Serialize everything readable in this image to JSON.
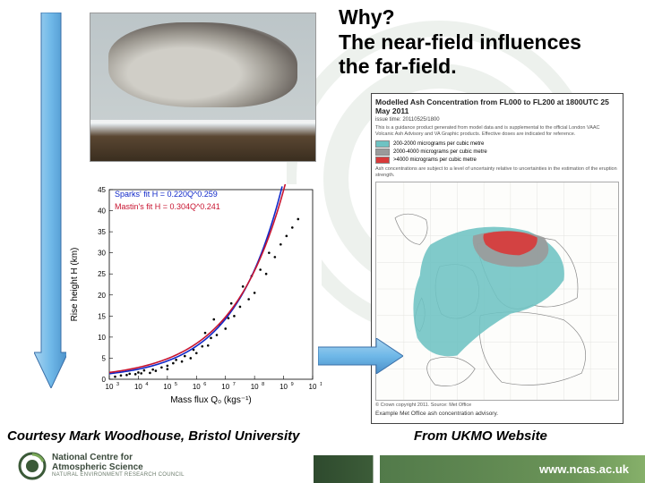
{
  "title_l1": "Why?",
  "title_l2": "The near-field influences",
  "title_l3": "the far-field.",
  "caption_left": "Courtesy Mark Woodhouse, Bristol University",
  "caption_right": "From UKMO Website",
  "footer": {
    "org_l1": "National Centre for",
    "org_l2": "Atmospheric Science",
    "org_l3": "NATURAL ENVIRONMENT RESEARCH COUNCIL",
    "url": "www.ncas.ac.uk"
  },
  "chart": {
    "xlabel": "Mass flux Q₀ (kgs⁻¹)",
    "ylabel": "Rise height H (km)",
    "fit_sparks": "Sparks' fit H = 0.220Q^0.259",
    "fit_sparks_color": "#1028c8",
    "fit_mastin": "Mastin's fit H = 0.304Q^0.241",
    "fit_mastin_color": "#c81430",
    "xlog_min": 3,
    "xlog_max": 10,
    "ylim": [
      0,
      45
    ],
    "yticks": [
      0,
      5,
      10,
      15,
      20,
      25,
      30,
      35,
      40,
      45
    ],
    "sparks_curve": {
      "a": 0.22,
      "b": 0.259
    },
    "mastin_curve": {
      "a": 0.304,
      "b": 0.241
    },
    "scatter": [
      [
        3.2,
        0.6
      ],
      [
        3.4,
        0.9
      ],
      [
        3.6,
        1.0
      ],
      [
        3.7,
        1.3
      ],
      [
        3.9,
        1.2
      ],
      [
        4.0,
        1.6
      ],
      [
        4.1,
        1.4
      ],
      [
        4.2,
        2.1
      ],
      [
        4.4,
        1.5
      ],
      [
        4.5,
        2.3
      ],
      [
        4.6,
        2.0
      ],
      [
        4.8,
        2.8
      ],
      [
        5.0,
        3.2
      ],
      [
        5.0,
        2.4
      ],
      [
        5.2,
        3.8
      ],
      [
        5.3,
        4.6
      ],
      [
        5.5,
        4.2
      ],
      [
        5.6,
        5.5
      ],
      [
        5.8,
        5.0
      ],
      [
        5.9,
        7.0
      ],
      [
        6.0,
        6.2
      ],
      [
        6.2,
        7.8
      ],
      [
        6.3,
        11.0
      ],
      [
        6.4,
        8.0
      ],
      [
        6.5,
        9.8
      ],
      [
        6.6,
        14.2
      ],
      [
        6.7,
        10.5
      ],
      [
        6.8,
        13.0
      ],
      [
        7.0,
        12.0
      ],
      [
        7.1,
        14.5
      ],
      [
        7.2,
        18.0
      ],
      [
        7.3,
        15.0
      ],
      [
        7.5,
        17.2
      ],
      [
        7.6,
        22.0
      ],
      [
        7.8,
        19.0
      ],
      [
        7.9,
        24.5
      ],
      [
        8.0,
        20.5
      ],
      [
        8.2,
        26.0
      ],
      [
        8.4,
        25.0
      ],
      [
        8.5,
        30.0
      ],
      [
        8.7,
        29.0
      ],
      [
        8.9,
        32.0
      ],
      [
        9.1,
        34.0
      ],
      [
        9.3,
        36.0
      ],
      [
        9.5,
        38.0
      ]
    ]
  },
  "map": {
    "title": "Modelled Ash Concentration from FL000 to FL200 at 1800UTC 25 May 2011",
    "subtitle": "issue time: 20110525/1800",
    "note": "This is a guidance product generated from model data and is supplemental to the official London VAAC Volcanic Ash Advisory and VA Graphic products. Effective doses are indicated for reference.",
    "legend": [
      {
        "color": "#6ec3c3",
        "label": "200-2000  micrograms per cubic metre"
      },
      {
        "color": "#9a9a9a",
        "label": "2000-4000  micrograms per cubic metre"
      },
      {
        "color": "#d83a3a",
        "label": ">4000  micrograms per cubic metre"
      }
    ],
    "warning": "Ash concentrations are subject to a level of uncertainty relative to uncertainties in the estimation of the eruption strength.",
    "copyright": "© Crown copyright 2011. Source: Met Office",
    "footer": "Example Met Office ash concentration advisory."
  },
  "colors": {
    "arrow": "#6fb8e8",
    "arrow_border": "#3a6fa8",
    "swirl": "#2e5a2e"
  }
}
